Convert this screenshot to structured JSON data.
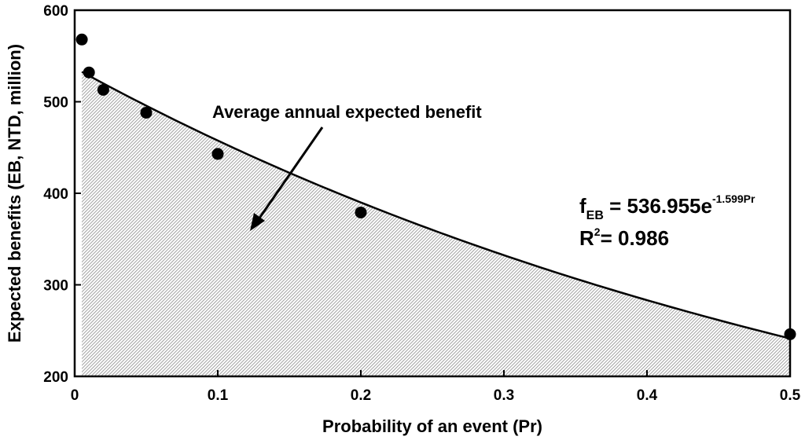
{
  "chart_data": {
    "type": "scatter",
    "title": "",
    "xlabel": "Probability of an event (Pr)",
    "ylabel": "Expected benefits (EB, NTD, million)",
    "xlim": [
      0,
      0.5
    ],
    "ylim": [
      200,
      600
    ],
    "x_ticks": [
      0,
      0.1,
      0.2,
      0.3,
      0.4,
      0.5
    ],
    "x_tick_labels": [
      "0",
      "0.1",
      "0.2",
      "0.3",
      "0.4",
      "0.5"
    ],
    "y_ticks": [
      200,
      300,
      400,
      500,
      600
    ],
    "y_tick_labels": [
      "200",
      "300",
      "400",
      "500",
      "600"
    ],
    "grid": false,
    "series": [
      {
        "name": "Expected benefits",
        "type": "scatter",
        "x": [
          0.005,
          0.01,
          0.02,
          0.05,
          0.1,
          0.2,
          0.5
        ],
        "y": [
          568,
          532,
          513,
          488,
          443,
          379,
          246
        ]
      }
    ],
    "fit": {
      "type": "exponential",
      "a": 536.955,
      "b": -1.599,
      "x_range": [
        0.005,
        0.5
      ],
      "shaded_area": true
    },
    "annotations": {
      "area_label": "Average annual expected benefit",
      "equation": {
        "f": "f",
        "subscript": "EB",
        "equals": " = 536.955e",
        "exponent": "-1.599Pr"
      },
      "r_squared": {
        "r": "R",
        "sup": "2",
        "rest": "= 0.986"
      }
    }
  }
}
